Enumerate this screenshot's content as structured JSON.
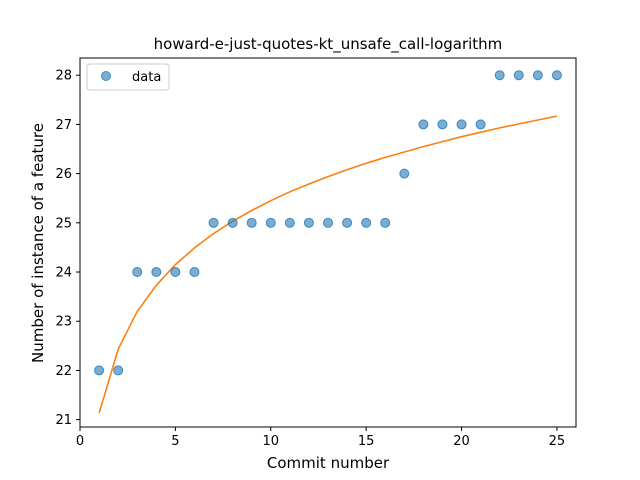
{
  "chart_data": {
    "type": "scatter",
    "title": "howard-e-just-quotes-kt_unsafe_call-logarithm",
    "xlabel": "Commit number",
    "ylabel": "Number of instance of a feature",
    "xlim": [
      0,
      26
    ],
    "ylim": [
      20.85,
      28.35
    ],
    "xticks": [
      0,
      5,
      10,
      15,
      20,
      25
    ],
    "yticks": [
      21,
      22,
      23,
      24,
      25,
      26,
      27,
      28
    ],
    "grid": false,
    "legend_position": "top-left",
    "series": [
      {
        "name": "data",
        "kind": "scatter",
        "color": "#1f77b4",
        "x": [
          1,
          2,
          3,
          4,
          5,
          6,
          7,
          8,
          9,
          10,
          11,
          12,
          13,
          14,
          15,
          16,
          17,
          18,
          19,
          20,
          21,
          22,
          23,
          24,
          25
        ],
        "y": [
          22,
          22,
          24,
          24,
          24,
          24,
          25,
          25,
          25,
          25,
          25,
          25,
          25,
          25,
          25,
          25,
          26,
          27,
          27,
          27,
          27,
          28,
          28,
          28,
          28
        ]
      },
      {
        "kind": "line",
        "color": "#ff7f0e",
        "x": [
          1,
          2,
          3,
          4,
          5,
          6,
          7,
          8,
          9,
          10,
          11,
          12,
          13,
          14,
          15,
          16,
          17,
          18,
          19,
          20,
          21,
          22,
          23,
          24,
          25
        ],
        "y": [
          21.13,
          22.43,
          23.2,
          23.73,
          24.15,
          24.49,
          24.78,
          25.03,
          25.25,
          25.45,
          25.63,
          25.79,
          25.94,
          26.08,
          26.21,
          26.33,
          26.44,
          26.55,
          26.65,
          26.75,
          26.84,
          26.93,
          27.01,
          27.09,
          27.17
        ]
      }
    ]
  }
}
